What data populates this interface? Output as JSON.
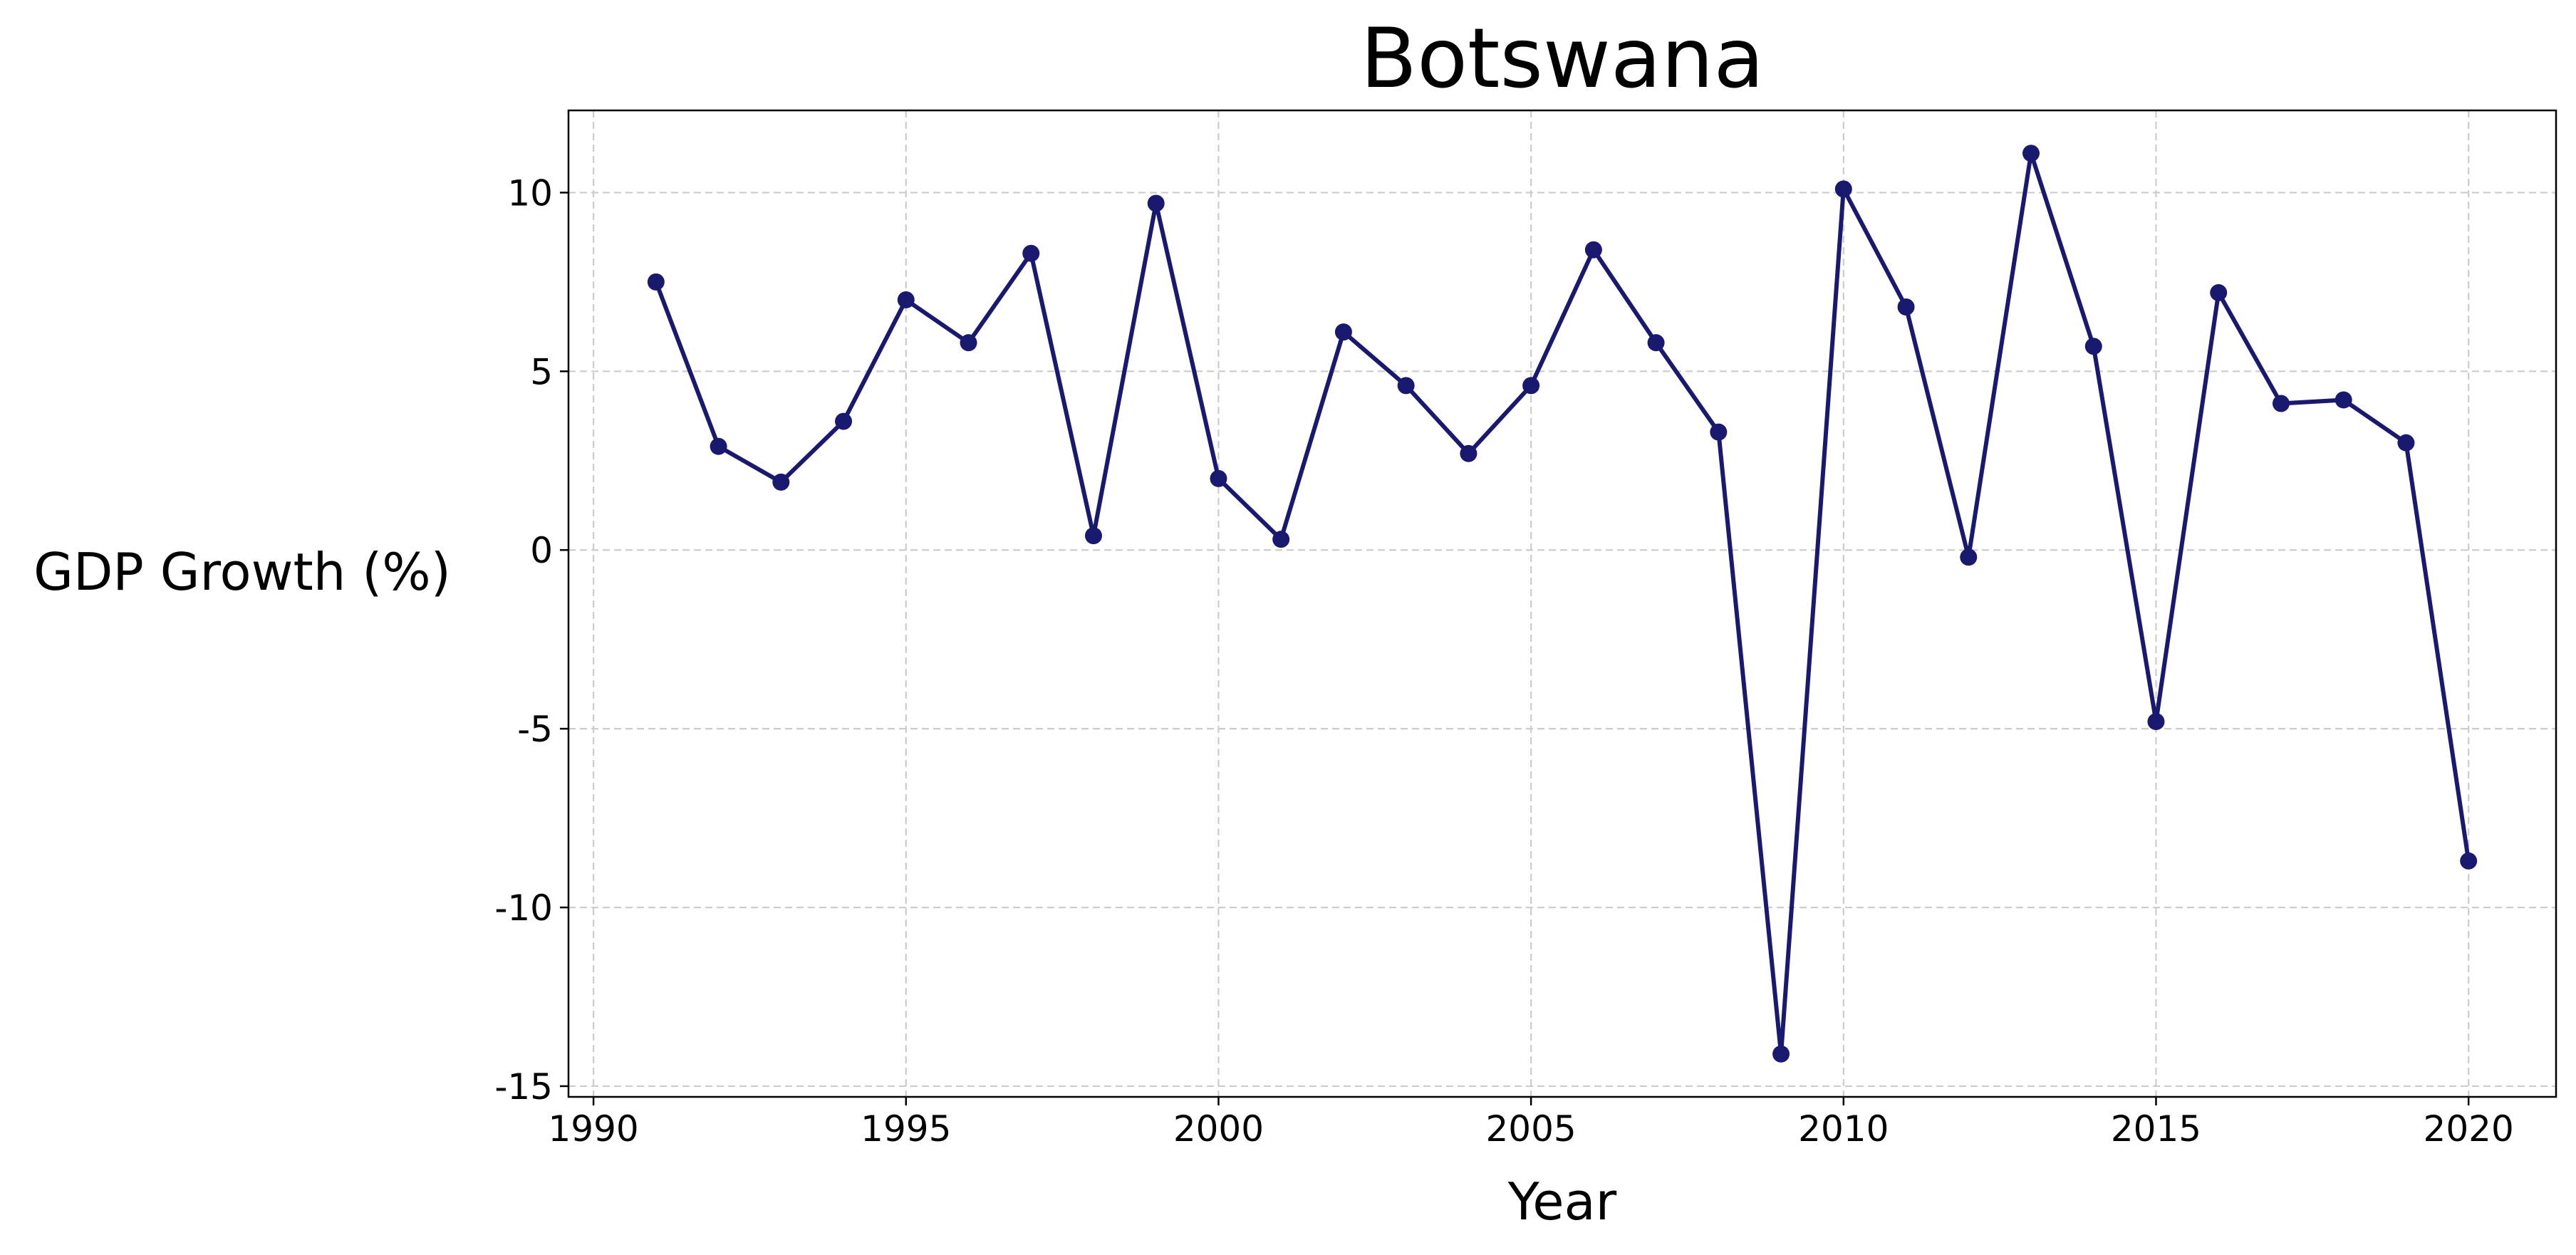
{
  "chart_data": {
    "type": "line",
    "title": "Botswana",
    "xlabel": "Year",
    "ylabel": "GDP Growth (%)",
    "xlim": [
      1989.6,
      2021.4
    ],
    "ylim": [
      -15.3,
      12.3
    ],
    "xticks": [
      1990,
      1995,
      2000,
      2005,
      2010,
      2015,
      2020
    ],
    "yticks": [
      -15,
      -10,
      -5,
      0,
      5,
      10
    ],
    "ytick_labels": [
      "-15",
      "-10",
      "-5",
      "0",
      "5",
      "10"
    ],
    "grid": true,
    "grid_style": "dashed",
    "line_color": "#191970",
    "marker": "circle",
    "series": [
      {
        "x": [
          1991,
          1992,
          1993,
          1994,
          1995,
          1996,
          1997,
          1998,
          1999,
          2000,
          2001,
          2002,
          2003,
          2004,
          2005,
          2006,
          2007,
          2008,
          2009,
          2010,
          2011,
          2012,
          2013,
          2014,
          2015,
          2016,
          2017,
          2018,
          2019,
          2020
        ],
        "values": [
          7.5,
          2.9,
          1.9,
          3.6,
          7.0,
          5.8,
          8.3,
          0.4,
          9.7,
          2.0,
          0.3,
          6.1,
          4.6,
          2.7,
          4.6,
          8.4,
          5.8,
          3.3,
          -14.1,
          10.1,
          6.8,
          -0.2,
          11.1,
          5.7,
          -4.8,
          7.2,
          4.1,
          4.2,
          3.0,
          -8.7
        ]
      }
    ]
  }
}
